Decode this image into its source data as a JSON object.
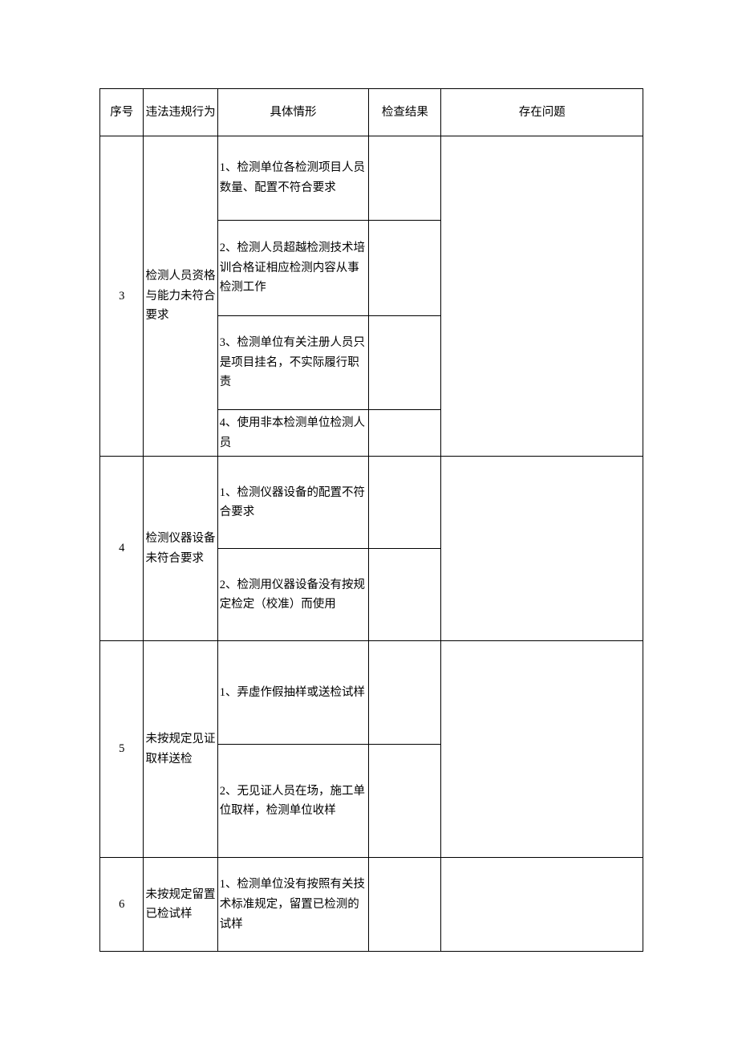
{
  "header": {
    "seq": "序号",
    "behavior": "违法违规行为",
    "detail": "具体情形",
    "result": "检查结果",
    "issue": "存在问题"
  },
  "rows": [
    {
      "seq": "3",
      "behavior": "检测人员资格与能力未符合要求",
      "details": [
        "1、检测单位各检测项目人员数量、配置不符合要求",
        "2、检测人员超越检测技术培训合格证相应检测内容从事检测工作",
        "3、检测单位有关注册人员只是项目挂名，不实际履行职责",
        "4、使用非本检测单位检测人员"
      ],
      "results": [
        "",
        "",
        "",
        ""
      ],
      "issue": ""
    },
    {
      "seq": "4",
      "behavior": "检测仪器设备未符合要求",
      "details": [
        "1、检测仪器设备的配置不符合要求",
        "2、检测用仪器设备没有按规定检定（校准）而使用"
      ],
      "results": [
        "",
        ""
      ],
      "issue": ""
    },
    {
      "seq": "5",
      "behavior": "未按规定见证取样送检",
      "details": [
        "1、弄虚作假抽样或送检试样",
        "2、无见证人员在场，施工单位取样，检测单位收样"
      ],
      "results": [
        "",
        ""
      ],
      "issue": ""
    },
    {
      "seq": "6",
      "behavior": "未按规定留置已检试样",
      "details": [
        "1、检测单位没有按照有关技术标准规定，留置已检测的试样"
      ],
      "results": [
        ""
      ],
      "issue": ""
    }
  ]
}
